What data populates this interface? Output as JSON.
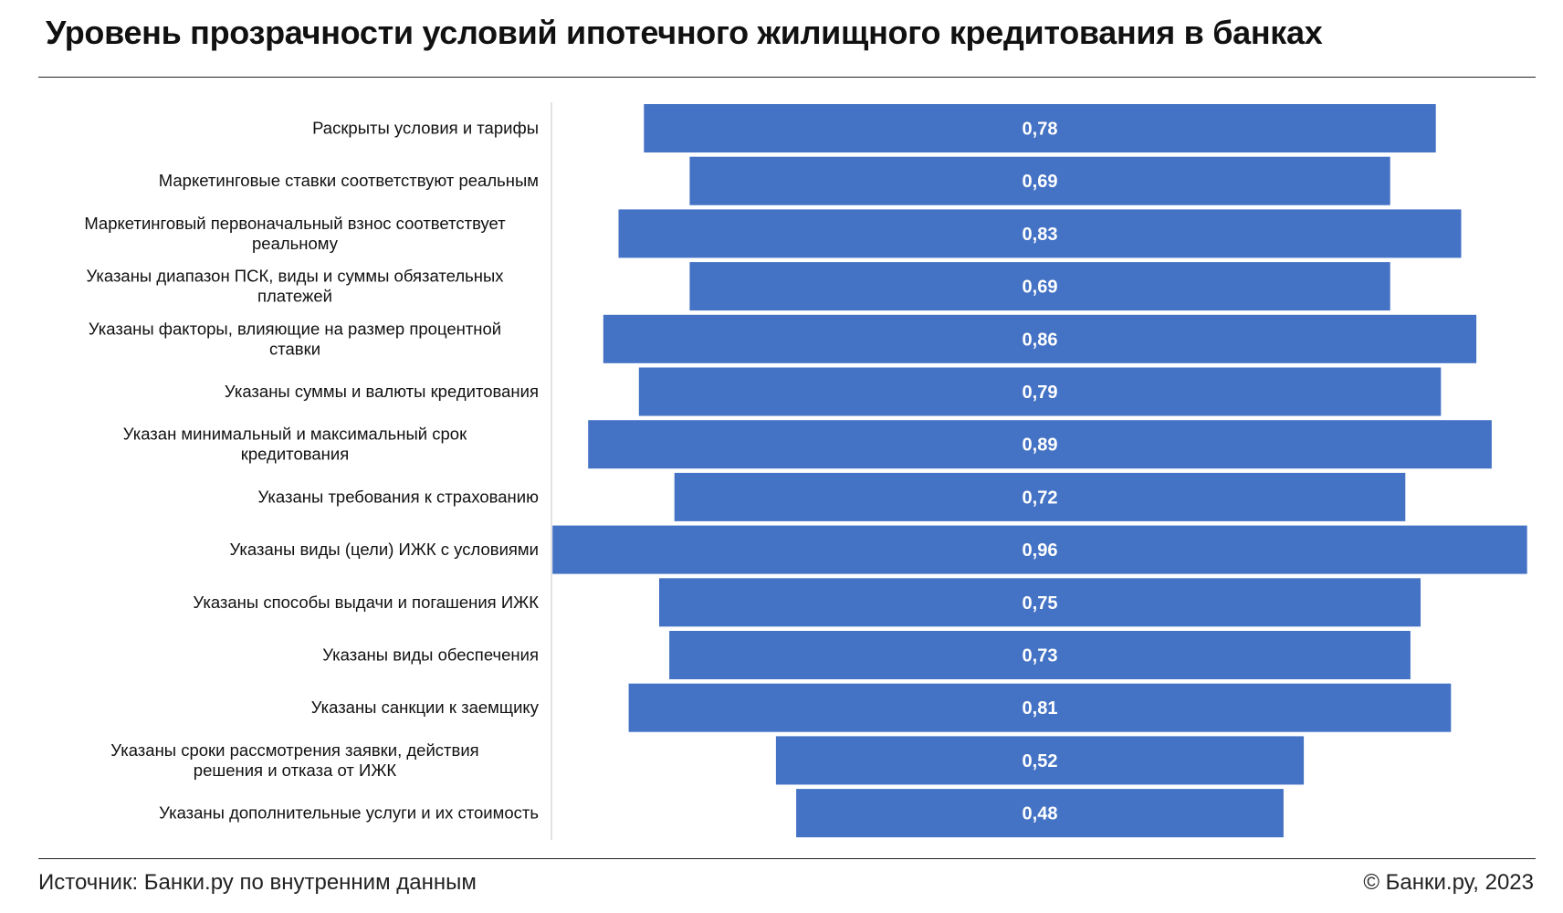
{
  "title": "Уровень прозрачности условий ипотечного жилищного кредитования в банках",
  "footer": {
    "source": "Источник: Банки.ру по внутренним данным",
    "copyright": "© Банки.ру, 2023"
  },
  "chart_data": {
    "type": "bar",
    "orientation": "horizontal",
    "layout": "centered",
    "title": "Уровень прозрачности условий ипотечного жилищного кредитования в банках",
    "xlim": [
      0,
      1
    ],
    "grid": false,
    "legend": "none",
    "bar_color": "#4472C4",
    "label_color": "#ffffff",
    "categories": [
      [
        "Раскрыты условия и тарифы"
      ],
      [
        "Маркетинговые ставки соответствуют реальным"
      ],
      [
        "Маркетинговый первоначальный взнос соответствует",
        "реальному"
      ],
      [
        "Указаны диапазон ПСК, виды и суммы обязательных",
        "платежей"
      ],
      [
        "Указаны факторы, влияющие на размер процентной",
        "ставки"
      ],
      [
        "Указаны суммы и валюты кредитования"
      ],
      [
        "Указан минимальный и максимальный срок",
        "кредитования"
      ],
      [
        "Указаны требования к страхованию"
      ],
      [
        "Указаны виды (цели) ИЖК с условиями"
      ],
      [
        "Указаны способы выдачи и погашения ИЖК"
      ],
      [
        "Указаны виды обеспечения"
      ],
      [
        "Указаны санкции к заемщику"
      ],
      [
        "Указаны сроки рассмотрения заявки, действия",
        "решения и отказа от ИЖК"
      ],
      [
        "Указаны дополнительные услуги и их стоимость"
      ]
    ],
    "values": [
      0.78,
      0.69,
      0.83,
      0.69,
      0.86,
      0.79,
      0.89,
      0.72,
      0.96,
      0.75,
      0.73,
      0.81,
      0.52,
      0.48
    ],
    "data_labels": [
      "0,78",
      "0,69",
      "0,83",
      "0,69",
      "0,86",
      "0,79",
      "0,89",
      "0,72",
      "0,96",
      "0,75",
      "0,73",
      "0,81",
      "0,52",
      "0,48"
    ]
  }
}
